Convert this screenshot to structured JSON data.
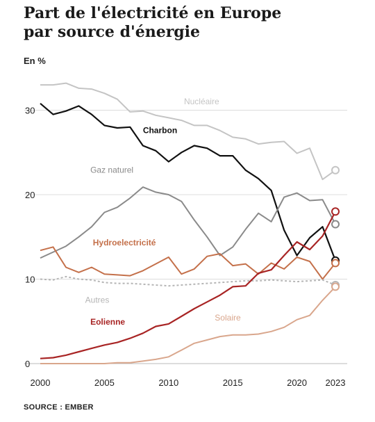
{
  "title_line1": "Part de l'électricité en Europe",
  "title_line2": "par source d'énergie",
  "unit_label": "En %",
  "source": "SOURCE : EMBER",
  "chart_data": {
    "type": "line",
    "title": "Part de l'électricité en Europe par source d'énergie",
    "ylabel": "En %",
    "xlim": [
      2000,
      2023
    ],
    "ylim": [
      0,
      34
    ],
    "x_ticks": [
      2000,
      2005,
      2010,
      2015,
      2020,
      2023
    ],
    "y_ticks": [
      0,
      10,
      20,
      30
    ],
    "grid": "horizontal",
    "x": [
      2000,
      2001,
      2002,
      2003,
      2004,
      2005,
      2006,
      2007,
      2008,
      2009,
      2010,
      2011,
      2012,
      2013,
      2014,
      2015,
      2016,
      2017,
      2018,
      2019,
      2020,
      2021,
      2022,
      2023
    ],
    "series": [
      {
        "name": "Nucléaire",
        "color": "#c4c4c4",
        "dashed": false,
        "endpoint": true,
        "label_pos": [
          11.2,
          30.7
        ],
        "label_anchor": "start",
        "values": [
          33.0,
          33.0,
          33.2,
          32.6,
          32.5,
          32.0,
          31.3,
          29.8,
          29.9,
          29.4,
          29.1,
          28.8,
          28.2,
          28.2,
          27.6,
          26.8,
          26.6,
          26.0,
          26.2,
          26.3,
          24.9,
          25.5,
          21.8,
          22.9
        ]
      },
      {
        "name": "Charbon",
        "color": "#111111",
        "dashed": false,
        "endpoint": true,
        "label_pos": [
          8.0,
          27.3
        ],
        "label_anchor": "start",
        "values": [
          30.8,
          29.5,
          29.9,
          30.5,
          29.5,
          28.2,
          27.9,
          28.0,
          25.8,
          25.2,
          23.9,
          25.0,
          25.8,
          25.5,
          24.6,
          24.6,
          22.9,
          21.9,
          20.5,
          15.8,
          12.8,
          14.9,
          16.2,
          12.2
        ]
      },
      {
        "name": "Gaz naturel",
        "color": "#8a8a8a",
        "dashed": false,
        "endpoint": true,
        "label_pos": [
          3.9,
          22.6
        ],
        "label_anchor": "start",
        "values": [
          12.5,
          13.2,
          13.9,
          15.0,
          16.2,
          17.9,
          18.5,
          19.6,
          20.9,
          20.3,
          20.0,
          19.2,
          17.0,
          15.0,
          12.8,
          13.8,
          15.9,
          17.8,
          16.8,
          19.7,
          20.2,
          19.3,
          19.4,
          16.5
        ]
      },
      {
        "name": "Hydroelectricité",
        "color": "#c4704a",
        "dashed": false,
        "endpoint": true,
        "label_pos": [
          4.1,
          14.0
        ],
        "label_anchor": "start",
        "values": [
          13.4,
          13.8,
          11.4,
          10.8,
          11.4,
          10.6,
          10.5,
          10.4,
          11.0,
          11.8,
          12.6,
          10.6,
          11.2,
          12.7,
          13.0,
          11.6,
          11.8,
          10.6,
          11.9,
          11.2,
          12.6,
          12.1,
          10.0,
          11.9
        ]
      },
      {
        "name": "Autres",
        "color": "#b5b5b5",
        "dashed": true,
        "endpoint": true,
        "label_pos": [
          3.5,
          7.2
        ],
        "label_anchor": "start",
        "values": [
          10.0,
          9.9,
          10.3,
          10.0,
          9.9,
          9.6,
          9.5,
          9.5,
          9.4,
          9.3,
          9.2,
          9.3,
          9.4,
          9.5,
          9.6,
          9.7,
          9.8,
          9.8,
          9.9,
          9.8,
          9.7,
          9.8,
          9.9,
          9.3
        ]
      },
      {
        "name": "Eolienne",
        "color": "#a82424",
        "dashed": false,
        "endpoint": true,
        "label_pos": [
          3.9,
          4.6
        ],
        "label_anchor": "start",
        "values": [
          0.6,
          0.7,
          1.0,
          1.4,
          1.8,
          2.2,
          2.5,
          3.0,
          3.6,
          4.4,
          4.7,
          5.6,
          6.5,
          7.3,
          8.1,
          9.1,
          9.2,
          10.7,
          11.1,
          12.8,
          14.4,
          13.5,
          15.1,
          18.0
        ]
      },
      {
        "name": "Solaire",
        "color": "#d9a68c",
        "dashed": false,
        "endpoint": true,
        "label_pos": [
          13.6,
          5.1
        ],
        "label_anchor": "start",
        "values": [
          0.0,
          0.0,
          0.0,
          0.0,
          0.0,
          0.0,
          0.1,
          0.1,
          0.3,
          0.5,
          0.8,
          1.6,
          2.4,
          2.8,
          3.2,
          3.4,
          3.4,
          3.5,
          3.8,
          4.3,
          5.2,
          5.7,
          7.5,
          9.1
        ]
      }
    ]
  }
}
